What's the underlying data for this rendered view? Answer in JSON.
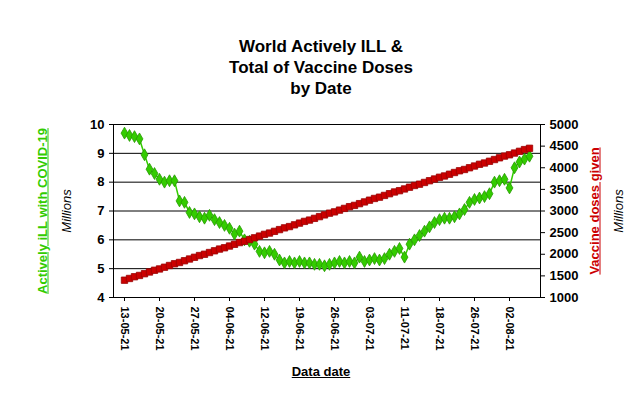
{
  "chart_data": {
    "type": "line",
    "title": "World Actively ILL &\nTotal of Vaccine Doses\nby Date",
    "x_label": "Data date",
    "y_unit": "Millions",
    "y2_unit": "Millions",
    "categories": [
      "13-05-21",
      null,
      null,
      null,
      null,
      null,
      null,
      "20-05-21",
      null,
      null,
      null,
      null,
      null,
      null,
      "27-05-21",
      null,
      null,
      null,
      null,
      null,
      null,
      "04-06-21",
      null,
      null,
      null,
      null,
      null,
      null,
      "12-06-21",
      null,
      null,
      null,
      null,
      null,
      null,
      "19-06-21",
      null,
      null,
      null,
      null,
      null,
      null,
      "26-06-21",
      null,
      null,
      null,
      null,
      null,
      null,
      "03-07-21",
      null,
      null,
      null,
      null,
      null,
      null,
      "11-07-21",
      null,
      null,
      null,
      null,
      null,
      null,
      "18-07-21",
      null,
      null,
      null,
      null,
      null,
      null,
      "26-07-21",
      null,
      null,
      null,
      null,
      null,
      null,
      "02-08-21",
      null,
      null,
      null,
      null
    ],
    "ylim": [
      4,
      10
    ],
    "yticks": [
      4,
      5,
      6,
      7,
      8,
      9,
      10
    ],
    "y2lim": [
      1000,
      5000
    ],
    "y2ticks": [
      1000,
      1500,
      2000,
      2500,
      3000,
      3500,
      4000,
      4500,
      5000
    ],
    "grid": true,
    "series": [
      {
        "name": "Actively iLL with COVID-19",
        "color": "#33cc00",
        "marker": "diamond",
        "values": [
          9.7,
          9.62,
          9.58,
          9.5,
          8.95,
          8.45,
          8.3,
          8.1,
          8.0,
          8.05,
          8.05,
          7.35,
          7.3,
          6.95,
          6.9,
          6.8,
          6.75,
          6.85,
          6.7,
          6.6,
          6.5,
          6.4,
          6.2,
          6.3,
          6.0,
          5.95,
          5.85,
          5.6,
          5.55,
          5.6,
          5.5,
          5.3,
          5.2,
          5.25,
          5.2,
          5.25,
          5.2,
          5.2,
          5.15,
          5.15,
          5.1,
          5.15,
          5.2,
          5.25,
          5.2,
          5.25,
          5.2,
          5.4,
          5.25,
          5.3,
          5.35,
          5.3,
          5.35,
          5.5,
          5.6,
          5.7,
          5.4,
          5.85,
          6.0,
          6.15,
          6.3,
          6.45,
          6.6,
          6.7,
          6.75,
          6.75,
          6.8,
          6.9,
          7.05,
          7.3,
          7.4,
          7.45,
          7.5,
          7.6,
          8.0,
          8.05,
          8.1,
          7.8,
          8.5,
          8.7,
          8.8,
          8.9
        ]
      },
      {
        "name": "Vaccine doses given",
        "color": "#cc0000",
        "marker": "square",
        "axis": "y2",
        "values": [
          1400,
          1440,
          1480,
          1510,
          1550,
          1590,
          1630,
          1660,
          1700,
          1740,
          1780,
          1810,
          1850,
          1890,
          1930,
          1970,
          2000,
          2040,
          2080,
          2120,
          2150,
          2190,
          2230,
          2270,
          2300,
          2340,
          2380,
          2420,
          2460,
          2490,
          2530,
          2570,
          2610,
          2640,
          2680,
          2720,
          2760,
          2790,
          2830,
          2870,
          2910,
          2950,
          2980,
          3020,
          3060,
          3100,
          3130,
          3170,
          3210,
          3250,
          3290,
          3320,
          3360,
          3400,
          3440,
          3470,
          3510,
          3550,
          3590,
          3620,
          3660,
          3700,
          3740,
          3780,
          3810,
          3850,
          3890,
          3930,
          3960,
          4000,
          4040,
          4080,
          4110,
          4150,
          4190,
          4230,
          4270,
          4300,
          4340,
          4380,
          4420,
          4450
        ]
      }
    ]
  }
}
